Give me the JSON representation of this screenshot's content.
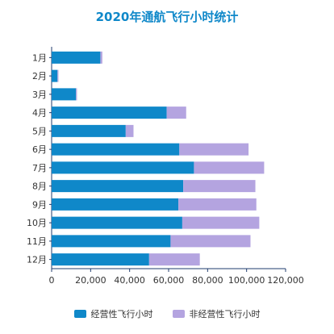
{
  "chart_data": {
    "type": "bar",
    "orientation": "horizontal",
    "stacked": true,
    "title": "2020年通航飞行小时统计",
    "categories": [
      "1月",
      "2月",
      "3月",
      "4月",
      "5月",
      "6月",
      "7月",
      "8月",
      "9月",
      "10月",
      "11月",
      "12月"
    ],
    "series": [
      {
        "name": "经营性飞行小时",
        "color": "#0f88c9",
        "values": [
          25000,
          3000,
          12500,
          59000,
          38000,
          65500,
          73000,
          67500,
          65000,
          67000,
          61000,
          50000
        ]
      },
      {
        "name": "非经营性飞行小时",
        "color": "#b4a4e0",
        "values": [
          1000,
          500,
          500,
          10000,
          4000,
          35500,
          36000,
          37000,
          40000,
          39500,
          41000,
          26000
        ]
      }
    ],
    "xlim": [
      0,
      120000
    ],
    "xticks": [
      "0",
      "20,000",
      "40,000",
      "60,000",
      "80,000",
      "100,000",
      "120,000"
    ],
    "grid": false,
    "legend_position": "bottom"
  }
}
